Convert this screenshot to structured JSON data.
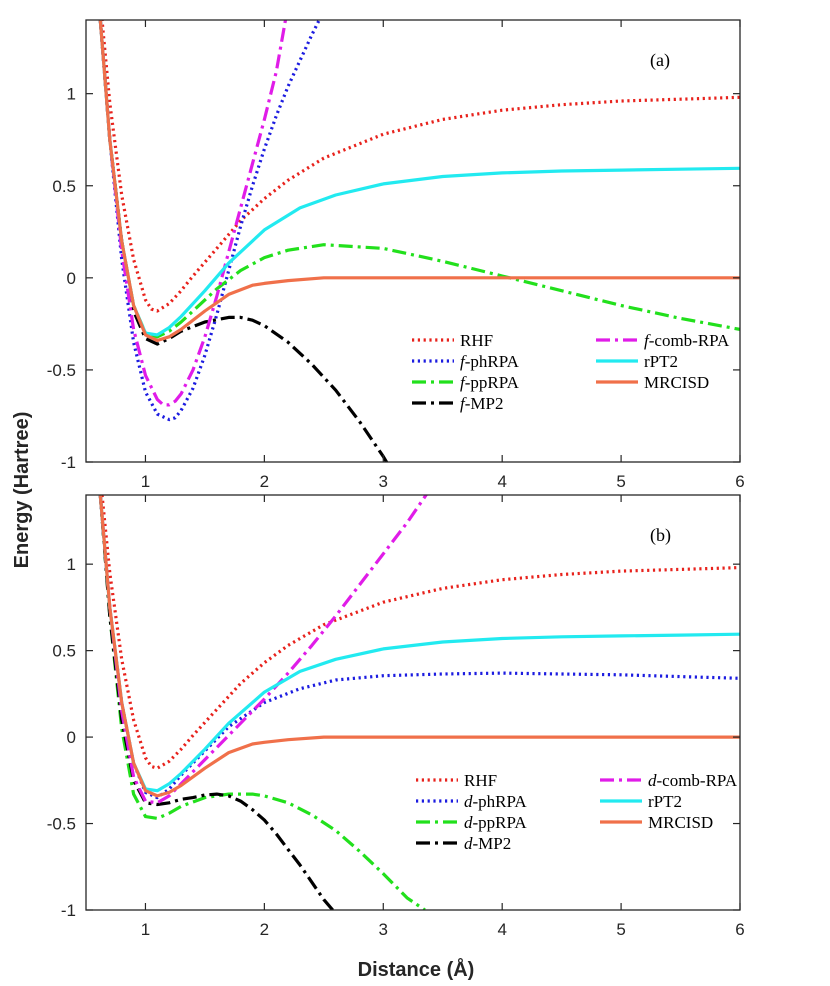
{
  "chart_data": [
    {
      "type": "line",
      "panel_label": "(a)",
      "xlim": [
        0.5,
        6
      ],
      "ylim": [
        -1,
        1.4
      ],
      "xticks": [
        1,
        2,
        3,
        4,
        5,
        6
      ],
      "yticks": [
        -1,
        -0.5,
        0,
        0.5,
        1
      ],
      "xtick_labels": [
        "1",
        "2",
        "3",
        "4",
        "5",
        "6"
      ],
      "ytick_labels": [
        "-1",
        "-0.5",
        "0",
        "0.5",
        "1"
      ],
      "legend_position": "lower-right",
      "series": [
        {
          "key": "rhf",
          "prefix": "",
          "name": "RHF",
          "color": "#e8221c",
          "style": "dotted",
          "x": [
            0.62,
            0.7,
            0.8,
            0.9,
            1.0,
            1.05,
            1.1,
            1.2,
            1.3,
            1.4,
            1.6,
            1.8,
            2.0,
            2.2,
            2.5,
            3.0,
            3.5,
            4.0,
            4.5,
            5.0,
            5.5,
            6.0
          ],
          "y": [
            1.5,
            0.95,
            0.45,
            0.1,
            -0.12,
            -0.17,
            -0.18,
            -0.14,
            -0.07,
            0.01,
            0.16,
            0.31,
            0.43,
            0.53,
            0.65,
            0.78,
            0.86,
            0.91,
            0.94,
            0.96,
            0.97,
            0.98
          ]
        },
        {
          "key": "phrpa",
          "prefix": "f",
          "name": "-phRPA",
          "color": "#1c1ce0",
          "style": "dotted",
          "x": [
            0.62,
            0.7,
            0.8,
            0.9,
            1.0,
            1.1,
            1.2,
            1.25,
            1.3,
            1.4,
            1.5,
            1.6,
            1.7,
            1.8,
            1.9,
            2.0,
            2.1,
            2.2,
            2.3,
            2.4,
            2.5
          ],
          "y": [
            1.4,
            0.75,
            0.1,
            -0.35,
            -0.62,
            -0.74,
            -0.77,
            -0.76,
            -0.72,
            -0.6,
            -0.42,
            -0.2,
            0.04,
            0.28,
            0.5,
            0.7,
            0.88,
            1.04,
            1.18,
            1.32,
            1.45
          ]
        },
        {
          "key": "pprpa",
          "prefix": "f",
          "name": "-ppRPA",
          "color": "#22e01c",
          "style": "dashdot",
          "x": [
            0.62,
            0.7,
            0.8,
            0.9,
            1.0,
            1.1,
            1.2,
            1.3,
            1.4,
            1.6,
            1.8,
            2.0,
            2.2,
            2.5,
            3.0,
            3.5,
            4.0,
            4.5,
            5.0,
            5.5,
            6.0
          ],
          "y": [
            1.4,
            0.75,
            0.2,
            -0.15,
            -0.3,
            -0.32,
            -0.29,
            -0.24,
            -0.18,
            -0.06,
            0.04,
            0.11,
            0.15,
            0.18,
            0.16,
            0.09,
            0.01,
            -0.07,
            -0.15,
            -0.22,
            -0.28
          ]
        },
        {
          "key": "mp2",
          "prefix": "f",
          "name": "-MP2",
          "color": "#000000",
          "style": "dashdot",
          "x": [
            0.62,
            0.7,
            0.8,
            0.9,
            1.0,
            1.1,
            1.2,
            1.3,
            1.5,
            1.7,
            1.8,
            1.9,
            2.0,
            2.2,
            2.4,
            2.6,
            2.8,
            3.0,
            3.1
          ],
          "y": [
            1.4,
            0.75,
            0.2,
            -0.18,
            -0.33,
            -0.36,
            -0.33,
            -0.29,
            -0.24,
            -0.215,
            -0.215,
            -0.23,
            -0.26,
            -0.35,
            -0.47,
            -0.61,
            -0.78,
            -0.97,
            -1.08
          ]
        },
        {
          "key": "comb",
          "prefix": "f",
          "name": "-comb-RPA",
          "color": "#e01ce8",
          "style": "dashdot",
          "x": [
            0.62,
            0.7,
            0.8,
            0.9,
            1.0,
            1.1,
            1.15,
            1.2,
            1.25,
            1.3,
            1.4,
            1.5,
            1.6,
            1.7,
            1.8,
            1.9,
            2.0,
            2.1,
            2.2
          ],
          "y": [
            1.4,
            0.75,
            0.15,
            -0.28,
            -0.53,
            -0.66,
            -0.69,
            -0.69,
            -0.67,
            -0.63,
            -0.5,
            -0.32,
            -0.1,
            0.14,
            0.38,
            0.62,
            0.86,
            1.12,
            1.48
          ]
        },
        {
          "key": "rpt2",
          "prefix": "",
          "name": "rPT2",
          "color": "#22eaf0",
          "style": "solid",
          "x": [
            0.62,
            0.7,
            0.8,
            0.9,
            1.0,
            1.1,
            1.2,
            1.3,
            1.5,
            1.7,
            2.0,
            2.3,
            2.6,
            3.0,
            3.5,
            4.0,
            4.5,
            5.0,
            5.5,
            6.0
          ],
          "y": [
            1.4,
            0.75,
            0.2,
            -0.15,
            -0.3,
            -0.31,
            -0.27,
            -0.21,
            -0.07,
            0.08,
            0.26,
            0.38,
            0.45,
            0.51,
            0.55,
            0.57,
            0.58,
            0.585,
            0.59,
            0.595
          ]
        },
        {
          "key": "mrci",
          "prefix": "",
          "name": "MRCISD",
          "color": "#f0704a",
          "style": "solid",
          "x": [
            0.62,
            0.7,
            0.8,
            0.9,
            1.0,
            1.1,
            1.2,
            1.3,
            1.5,
            1.7,
            1.9,
            2.0,
            2.2,
            2.5,
            3.0,
            4.0,
            5.0,
            6.0
          ],
          "y": [
            1.4,
            0.75,
            0.2,
            -0.15,
            -0.31,
            -0.34,
            -0.32,
            -0.28,
            -0.18,
            -0.09,
            -0.04,
            -0.03,
            -0.015,
            0,
            0,
            0,
            0,
            0
          ]
        }
      ]
    },
    {
      "type": "line",
      "panel_label": "(b)",
      "xlim": [
        0.5,
        6
      ],
      "ylim": [
        -1,
        1.4
      ],
      "xticks": [
        1,
        2,
        3,
        4,
        5,
        6
      ],
      "yticks": [
        -1,
        -0.5,
        0,
        0.5,
        1
      ],
      "xtick_labels": [
        "1",
        "2",
        "3",
        "4",
        "5",
        "6"
      ],
      "ytick_labels": [
        "-1",
        "-0.5",
        "0",
        "0.5",
        "1"
      ],
      "legend_position": "lower-right",
      "series": [
        {
          "key": "rhf",
          "prefix": "",
          "name": "RHF",
          "color": "#e8221c",
          "style": "dotted",
          "x": [
            0.62,
            0.7,
            0.8,
            0.9,
            1.0,
            1.05,
            1.1,
            1.2,
            1.3,
            1.4,
            1.6,
            1.8,
            2.0,
            2.2,
            2.5,
            3.0,
            3.5,
            4.0,
            4.5,
            5.0,
            5.5,
            6.0
          ],
          "y": [
            1.5,
            0.95,
            0.45,
            0.1,
            -0.12,
            -0.17,
            -0.18,
            -0.14,
            -0.07,
            0.01,
            0.16,
            0.31,
            0.43,
            0.53,
            0.65,
            0.78,
            0.86,
            0.91,
            0.94,
            0.96,
            0.97,
            0.98
          ]
        },
        {
          "key": "phrpa",
          "prefix": "d",
          "name": "-phRPA",
          "color": "#1c1ce0",
          "style": "dotted",
          "x": [
            0.62,
            0.7,
            0.8,
            0.9,
            1.0,
            1.1,
            1.2,
            1.3,
            1.5,
            1.7,
            2.0,
            2.3,
            2.6,
            3.0,
            3.5,
            4.0,
            4.5,
            5.0,
            5.5,
            6.0
          ],
          "y": [
            1.4,
            0.75,
            0.2,
            -0.15,
            -0.32,
            -0.35,
            -0.3,
            -0.22,
            -0.08,
            0.06,
            0.2,
            0.28,
            0.33,
            0.355,
            0.365,
            0.37,
            0.365,
            0.36,
            0.35,
            0.34
          ]
        },
        {
          "key": "pprpa",
          "prefix": "d",
          "name": "-ppRPA",
          "color": "#22e01c",
          "style": "dashdot",
          "x": [
            0.62,
            0.7,
            0.8,
            0.9,
            1.0,
            1.1,
            1.2,
            1.3,
            1.5,
            1.7,
            1.9,
            2.0,
            2.2,
            2.4,
            2.6,
            2.8,
            3.0,
            3.2,
            3.35
          ],
          "y": [
            1.4,
            0.7,
            0.05,
            -0.33,
            -0.46,
            -0.47,
            -0.44,
            -0.4,
            -0.35,
            -0.33,
            -0.33,
            -0.34,
            -0.38,
            -0.45,
            -0.54,
            -0.66,
            -0.79,
            -0.93,
            -1.0
          ]
        },
        {
          "key": "mp2",
          "prefix": "d",
          "name": "-MP2",
          "color": "#000000",
          "style": "dashdot",
          "x": [
            0.62,
            0.7,
            0.8,
            0.9,
            1.0,
            1.1,
            1.2,
            1.3,
            1.4,
            1.5,
            1.6,
            1.7,
            1.8,
            1.9,
            2.0,
            2.1,
            2.2,
            2.3,
            2.4,
            2.5,
            2.6
          ],
          "y": [
            1.4,
            0.7,
            0.1,
            -0.25,
            -0.38,
            -0.39,
            -0.38,
            -0.36,
            -0.35,
            -0.335,
            -0.33,
            -0.34,
            -0.37,
            -0.42,
            -0.48,
            -0.56,
            -0.65,
            -0.74,
            -0.84,
            -0.94,
            -1.02
          ]
        },
        {
          "key": "comb",
          "prefix": "d",
          "name": "-comb-RPA",
          "color": "#e01ce8",
          "style": "dashdot",
          "x": [
            0.62,
            0.7,
            0.8,
            0.9,
            1.0,
            1.1,
            1.2,
            1.3,
            1.5,
            1.7,
            1.9,
            2.0,
            2.2,
            2.4,
            2.6,
            2.8,
            3.0,
            3.2,
            3.4
          ],
          "y": [
            1.4,
            0.75,
            0.15,
            -0.23,
            -0.37,
            -0.38,
            -0.34,
            -0.27,
            -0.13,
            0.01,
            0.15,
            0.22,
            0.37,
            0.53,
            0.7,
            0.88,
            1.06,
            1.24,
            1.44
          ]
        },
        {
          "key": "rpt2",
          "prefix": "",
          "name": "rPT2",
          "color": "#22eaf0",
          "style": "solid",
          "x": [
            0.62,
            0.7,
            0.8,
            0.9,
            1.0,
            1.1,
            1.2,
            1.3,
            1.5,
            1.7,
            2.0,
            2.3,
            2.6,
            3.0,
            3.5,
            4.0,
            4.5,
            5.0,
            5.5,
            6.0
          ],
          "y": [
            1.4,
            0.75,
            0.2,
            -0.15,
            -0.3,
            -0.31,
            -0.27,
            -0.21,
            -0.07,
            0.08,
            0.26,
            0.38,
            0.45,
            0.51,
            0.55,
            0.57,
            0.58,
            0.585,
            0.59,
            0.595
          ]
        },
        {
          "key": "mrci",
          "prefix": "",
          "name": "MRCISD",
          "color": "#f0704a",
          "style": "solid",
          "x": [
            0.62,
            0.7,
            0.8,
            0.9,
            1.0,
            1.1,
            1.2,
            1.3,
            1.5,
            1.7,
            1.9,
            2.0,
            2.2,
            2.5,
            3.0,
            4.0,
            5.0,
            6.0
          ],
          "y": [
            1.4,
            0.75,
            0.2,
            -0.15,
            -0.31,
            -0.34,
            -0.32,
            -0.28,
            -0.18,
            -0.09,
            -0.04,
            -0.03,
            -0.015,
            0,
            0,
            0,
            0,
            0
          ]
        }
      ]
    }
  ],
  "xlabel": "Distance (Å)",
  "ylabel": "Energy (Hartree)"
}
